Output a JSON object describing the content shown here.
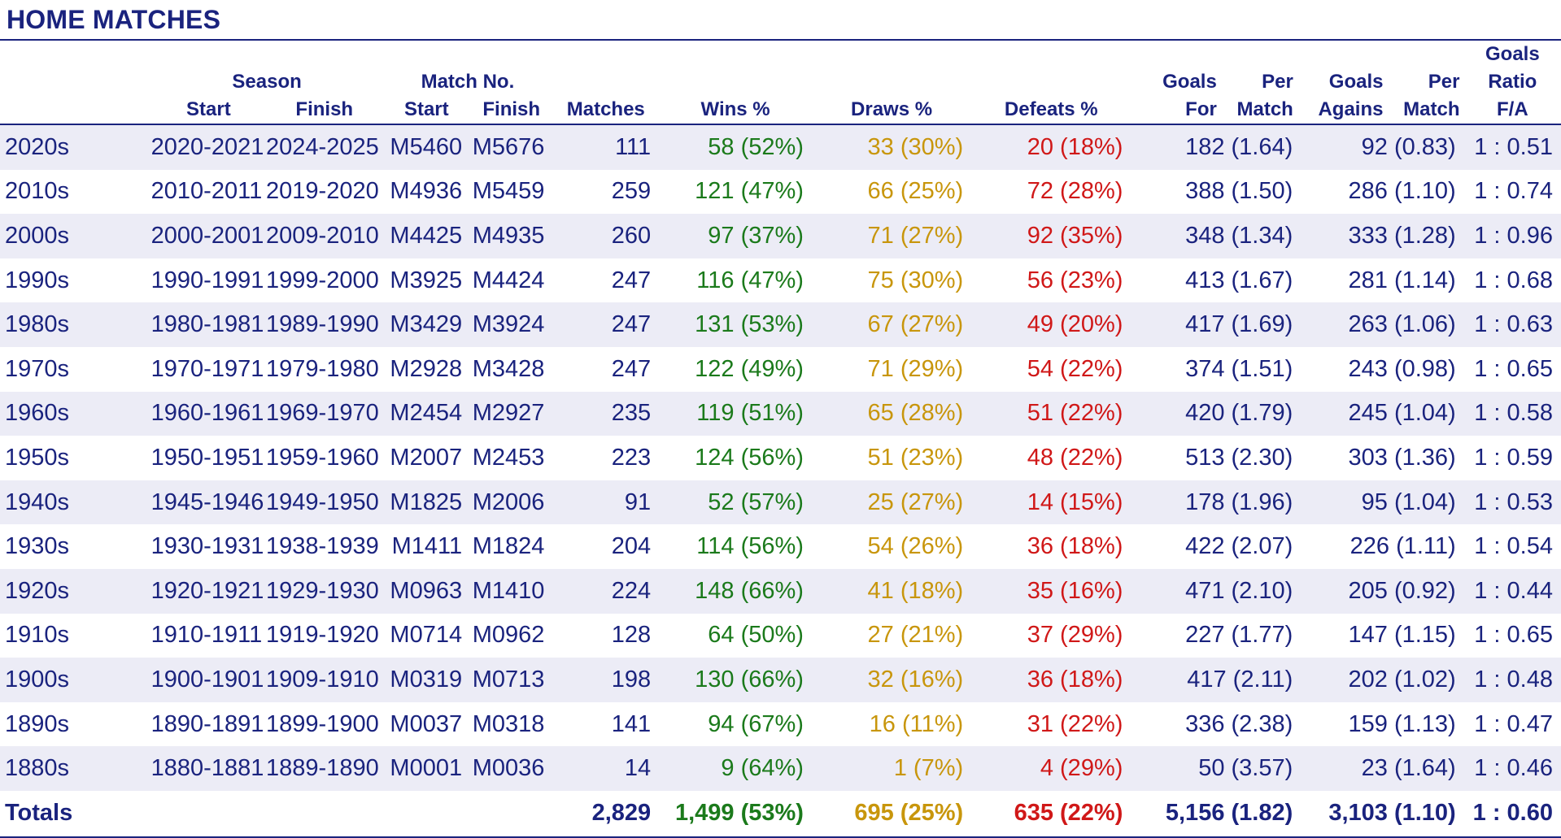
{
  "title": "HOME MATCHES",
  "colors": {
    "navy": "#1a237e",
    "wins": "#1b7a1b",
    "draws": "#c8960c",
    "defeats": "#d01818",
    "band": "#ececf6"
  },
  "headers": {
    "season": "Season",
    "match_no": "Match No.",
    "start": "Start",
    "finish": "Finish",
    "matches": "Matches",
    "wins": "Wins  %",
    "draws": "Draws  %",
    "defeats": "Defeats  %",
    "goals_for_1": "Goals",
    "goals_for_2": "For",
    "per_match_1": "Per",
    "per_match_2": "Match",
    "goals_against_1": "Goals",
    "goals_against_2": "Agains",
    "ratio_1": "Goals",
    "ratio_2": "Ratio",
    "ratio_3": "F/A"
  },
  "rows": [
    {
      "decade": "2020s",
      "season_start": "2020-2021",
      "season_finish": "2024-2025",
      "match_start": "M5460",
      "match_finish": "M5676",
      "matches": "111",
      "wins": "58 (52%)",
      "draws": "33 (30%)",
      "defeats": "20 (18%)",
      "goals_for": "182 (1.64)",
      "goals_against": "92 (0.83)",
      "ratio": "1 : 0.51"
    },
    {
      "decade": "2010s",
      "season_start": "2010-2011",
      "season_finish": "2019-2020",
      "match_start": "M4936",
      "match_finish": "M5459",
      "matches": "259",
      "wins": "121 (47%)",
      "draws": "66 (25%)",
      "defeats": "72 (28%)",
      "goals_for": "388 (1.50)",
      "goals_against": "286 (1.10)",
      "ratio": "1 : 0.74"
    },
    {
      "decade": "2000s",
      "season_start": "2000-2001",
      "season_finish": "2009-2010",
      "match_start": "M4425",
      "match_finish": "M4935",
      "matches": "260",
      "wins": "97 (37%)",
      "draws": "71 (27%)",
      "defeats": "92 (35%)",
      "goals_for": "348 (1.34)",
      "goals_against": "333 (1.28)",
      "ratio": "1 : 0.96"
    },
    {
      "decade": "1990s",
      "season_start": "1990-1991",
      "season_finish": "1999-2000",
      "match_start": "M3925",
      "match_finish": "M4424",
      "matches": "247",
      "wins": "116 (47%)",
      "draws": "75 (30%)",
      "defeats": "56 (23%)",
      "goals_for": "413 (1.67)",
      "goals_against": "281 (1.14)",
      "ratio": "1 : 0.68"
    },
    {
      "decade": "1980s",
      "season_start": "1980-1981",
      "season_finish": "1989-1990",
      "match_start": "M3429",
      "match_finish": "M3924",
      "matches": "247",
      "wins": "131 (53%)",
      "draws": "67 (27%)",
      "defeats": "49 (20%)",
      "goals_for": "417 (1.69)",
      "goals_against": "263 (1.06)",
      "ratio": "1 : 0.63"
    },
    {
      "decade": "1970s",
      "season_start": "1970-1971",
      "season_finish": "1979-1980",
      "match_start": "M2928",
      "match_finish": "M3428",
      "matches": "247",
      "wins": "122 (49%)",
      "draws": "71 (29%)",
      "defeats": "54 (22%)",
      "goals_for": "374 (1.51)",
      "goals_against": "243 (0.98)",
      "ratio": "1 : 0.65"
    },
    {
      "decade": "1960s",
      "season_start": "1960-1961",
      "season_finish": "1969-1970",
      "match_start": "M2454",
      "match_finish": "M2927",
      "matches": "235",
      "wins": "119 (51%)",
      "draws": "65 (28%)",
      "defeats": "51 (22%)",
      "goals_for": "420 (1.79)",
      "goals_against": "245 (1.04)",
      "ratio": "1 : 0.58"
    },
    {
      "decade": "1950s",
      "season_start": "1950-1951",
      "season_finish": "1959-1960",
      "match_start": "M2007",
      "match_finish": "M2453",
      "matches": "223",
      "wins": "124 (56%)",
      "draws": "51 (23%)",
      "defeats": "48 (22%)",
      "goals_for": "513 (2.30)",
      "goals_against": "303 (1.36)",
      "ratio": "1 : 0.59"
    },
    {
      "decade": "1940s",
      "season_start": "1945-1946",
      "season_finish": "1949-1950",
      "match_start": "M1825",
      "match_finish": "M2006",
      "matches": "91",
      "wins": "52 (57%)",
      "draws": "25 (27%)",
      "defeats": "14 (15%)",
      "goals_for": "178 (1.96)",
      "goals_against": "95 (1.04)",
      "ratio": "1 : 0.53"
    },
    {
      "decade": "1930s",
      "season_start": "1930-1931",
      "season_finish": "1938-1939",
      "match_start": "M1411",
      "match_finish": "M1824",
      "matches": "204",
      "wins": "114 (56%)",
      "draws": "54 (26%)",
      "defeats": "36 (18%)",
      "goals_for": "422 (2.07)",
      "goals_against": "226 (1.11)",
      "ratio": "1 : 0.54"
    },
    {
      "decade": "1920s",
      "season_start": "1920-1921",
      "season_finish": "1929-1930",
      "match_start": "M0963",
      "match_finish": "M1410",
      "matches": "224",
      "wins": "148 (66%)",
      "draws": "41 (18%)",
      "defeats": "35 (16%)",
      "goals_for": "471 (2.10)",
      "goals_against": "205 (0.92)",
      "ratio": "1 : 0.44"
    },
    {
      "decade": "1910s",
      "season_start": "1910-1911",
      "season_finish": "1919-1920",
      "match_start": "M0714",
      "match_finish": "M0962",
      "matches": "128",
      "wins": "64 (50%)",
      "draws": "27 (21%)",
      "defeats": "37 (29%)",
      "goals_for": "227 (1.77)",
      "goals_against": "147 (1.15)",
      "ratio": "1 : 0.65"
    },
    {
      "decade": "1900s",
      "season_start": "1900-1901",
      "season_finish": "1909-1910",
      "match_start": "M0319",
      "match_finish": "M0713",
      "matches": "198",
      "wins": "130 (66%)",
      "draws": "32 (16%)",
      "defeats": "36 (18%)",
      "goals_for": "417 (2.11)",
      "goals_against": "202 (1.02)",
      "ratio": "1 : 0.48"
    },
    {
      "decade": "1890s",
      "season_start": "1890-1891",
      "season_finish": "1899-1900",
      "match_start": "M0037",
      "match_finish": "M0318",
      "matches": "141",
      "wins": "94 (67%)",
      "draws": "16 (11%)",
      "defeats": "31 (22%)",
      "goals_for": "336 (2.38)",
      "goals_against": "159 (1.13)",
      "ratio": "1 : 0.47"
    },
    {
      "decade": "1880s",
      "season_start": "1880-1881",
      "season_finish": "1889-1890",
      "match_start": "M0001",
      "match_finish": "M0036",
      "matches": "14",
      "wins": "9 (64%)",
      "draws": "1 (7%)",
      "defeats": "4 (29%)",
      "goals_for": "50 (3.57)",
      "goals_against": "23 (1.64)",
      "ratio": "1 : 0.46"
    }
  ],
  "totals": {
    "label": "Totals",
    "matches": "2,829",
    "wins": "1,499 (53%)",
    "draws": "695 (25%)",
    "defeats": "635 (22%)",
    "goals_for": "5,156 (1.82)",
    "goals_against": "3,103 (1.10)",
    "ratio": "1 : 0.60"
  }
}
